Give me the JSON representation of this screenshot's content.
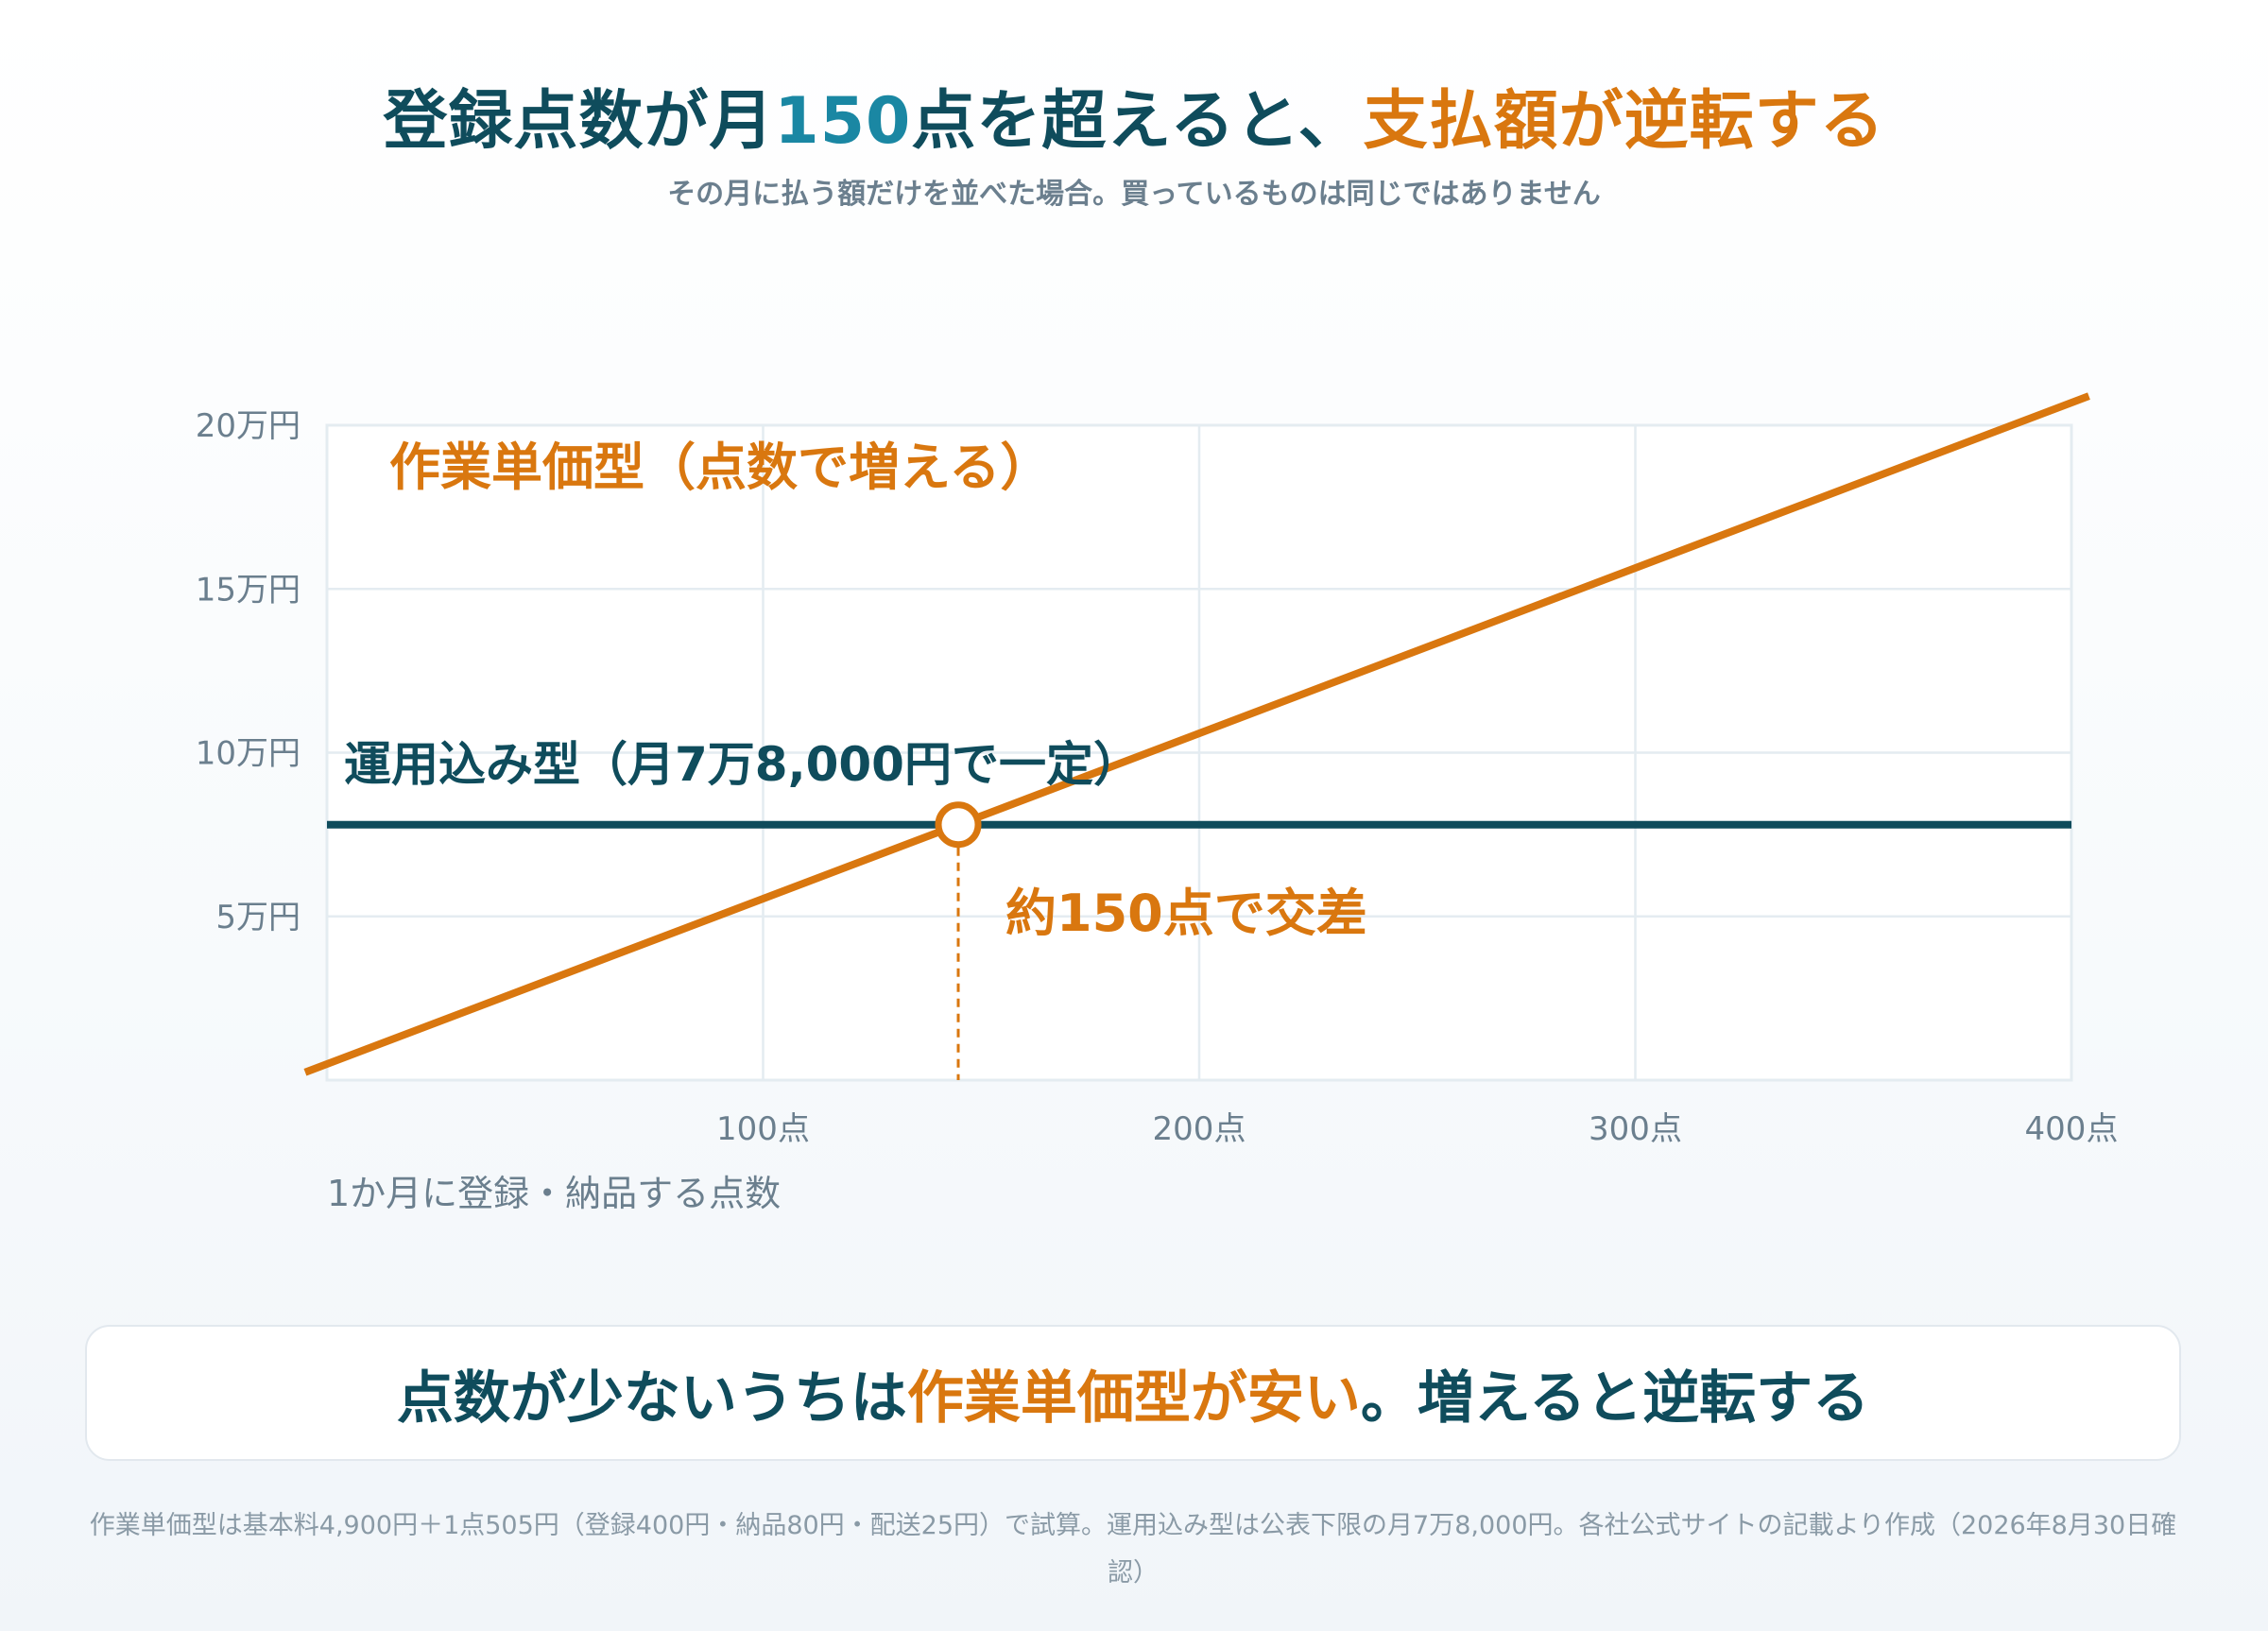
{
  "header": {
    "title_pre": "登録点数が月",
    "title_num": "150",
    "title_mid": "点を超えると、",
    "title_accent": "支払額が逆転する",
    "subtitle": "その月に払う額だけを並べた場合。買っているものは同じではありません"
  },
  "chart_data": {
    "type": "line",
    "xlabel": "1か月に登録・納品する点数",
    "ylabel": "",
    "x_range": [
      0,
      400
    ],
    "y_range": [
      0,
      200000
    ],
    "x_ticks": [
      {
        "value": 100,
        "label": "100点"
      },
      {
        "value": 200,
        "label": "200点"
      },
      {
        "value": 300,
        "label": "300点"
      },
      {
        "value": 400,
        "label": "400点"
      }
    ],
    "y_ticks": [
      {
        "value": 50000,
        "label": "5万円"
      },
      {
        "value": 100000,
        "label": "10万円"
      },
      {
        "value": 150000,
        "label": "15万円"
      },
      {
        "value": 200000,
        "label": "20万円"
      }
    ],
    "grid": true,
    "series": [
      {
        "name": "作業単価型（点数で増える）",
        "color": "#d9770f",
        "base": 4900,
        "per_unit": 505,
        "points": [
          {
            "x": 0,
            "y": 4900
          },
          {
            "x": 400,
            "y": 206900
          }
        ]
      },
      {
        "name": "運用込み型（月7万8,000円で一定）",
        "color": "#0f4c5c",
        "points": [
          {
            "x": 0,
            "y": 78000
          },
          {
            "x": 400,
            "y": 78000
          }
        ]
      }
    ],
    "intersection": {
      "x": 144.75,
      "y": 78000,
      "label": "約150点で交差"
    }
  },
  "summary": {
    "pre": "点数が少ないうちは",
    "accent": "作業単価型が安い",
    "post": "。増えると逆転する"
  },
  "footnote": "作業単価型は基本料4,900円＋1点505円（登録400円・納品80円・配送25円）で試算。運用込み型は公表下限の月7万8,000円。各社公式サイトの記載より作成（2026年8月30日確認）"
}
